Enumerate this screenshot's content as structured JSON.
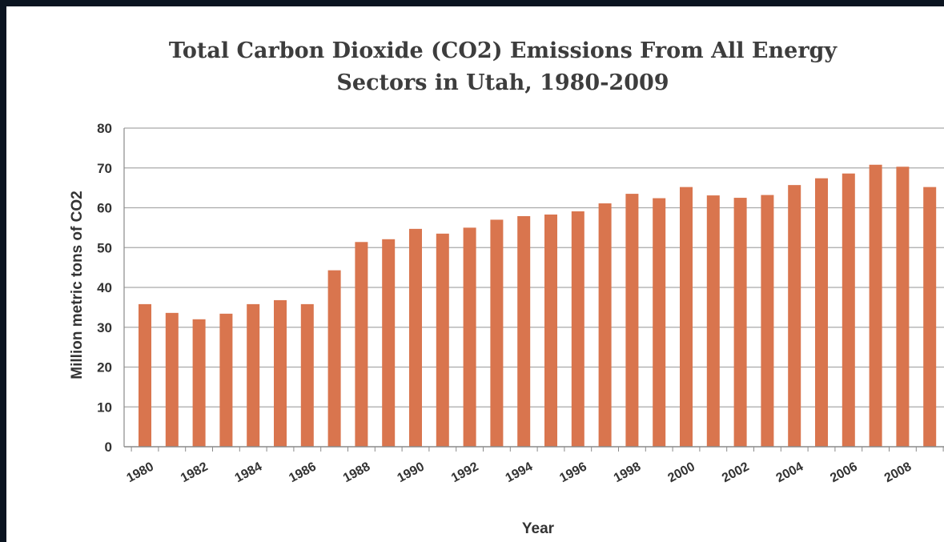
{
  "chart_data": {
    "type": "bar",
    "title_line1": "Total Carbon Dioxide (CO2) Emissions From All Energy",
    "title_line2": "Sectors in Utah, 1980-2009",
    "xlabel": "Year",
    "ylabel": "Million metric tons of CO2",
    "ylim": [
      0,
      80
    ],
    "yticks": [
      0,
      10,
      20,
      30,
      40,
      50,
      60,
      70,
      80
    ],
    "grid": true,
    "categories": [
      "1980",
      "1981",
      "1982",
      "1983",
      "1984",
      "1985",
      "1986",
      "1987",
      "1988",
      "1989",
      "1990",
      "1991",
      "1992",
      "1993",
      "1994",
      "1995",
      "1996",
      "1997",
      "1998",
      "1999",
      "2000",
      "2001",
      "2002",
      "2003",
      "2004",
      "2005",
      "2006",
      "2007",
      "2008",
      "2009"
    ],
    "xtick_labels": [
      "1980",
      "1982",
      "1984",
      "1986",
      "1988",
      "1990",
      "1992",
      "1994",
      "1996",
      "1998",
      "2000",
      "2002",
      "2004",
      "2006",
      "2008"
    ],
    "values": [
      35.8,
      33.6,
      32.0,
      33.4,
      35.8,
      36.8,
      35.8,
      44.3,
      51.4,
      52.1,
      54.7,
      53.5,
      55.0,
      57.0,
      57.9,
      58.3,
      59.1,
      61.1,
      63.5,
      62.4,
      65.2,
      63.1,
      62.5,
      63.2,
      65.7,
      67.4,
      68.6,
      70.8,
      70.3,
      65.2
    ],
    "bar_color": "#d9754e"
  }
}
